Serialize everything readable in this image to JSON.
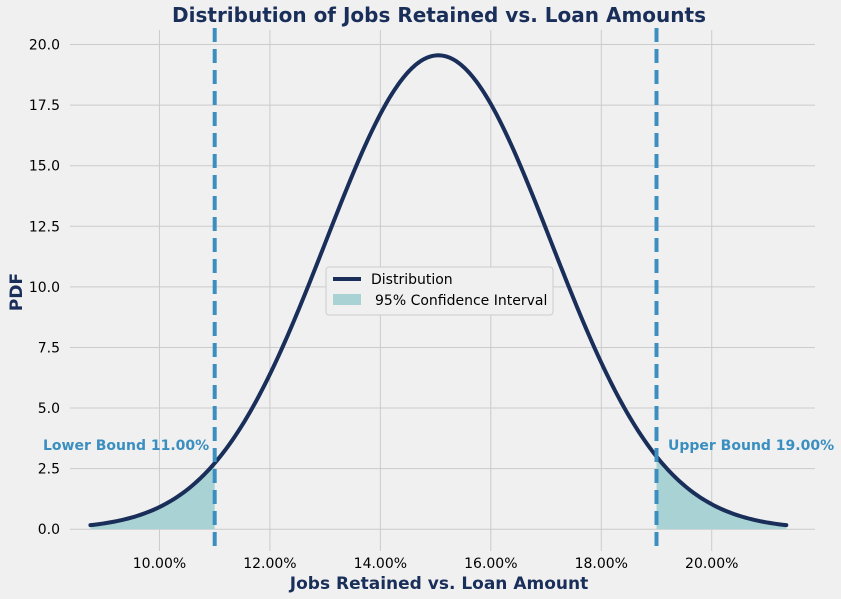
{
  "chart_data": {
    "type": "line",
    "title": "Distribution of Jobs Retained vs. Loan Amounts",
    "xlabel": "Jobs Retained vs. Loan Amount",
    "ylabel": "PDF",
    "x_ticks": [
      0.1,
      0.12,
      0.14,
      0.16,
      0.18,
      0.2
    ],
    "x_tick_labels": [
      "10.00%",
      "12.00%",
      "14.00%",
      "16.00%",
      "18.00%",
      "20.00%"
    ],
    "y_ticks": [
      0,
      2.5,
      5,
      7.5,
      10,
      12.5,
      15,
      17.5,
      20
    ],
    "y_tick_labels": [
      "0.0",
      "2.5",
      "5.0",
      "7.5",
      "10.0",
      "12.5",
      "15.0",
      "17.5",
      "20.0"
    ],
    "xlim": [
      0.0838,
      0.2187
    ],
    "ylim": [
      -0.9,
      20.6
    ],
    "grid": true,
    "distribution": {
      "name": "Distribution",
      "mean": 0.1505,
      "std": 0.0204,
      "x_range": [
        0.0875,
        0.2135
      ]
    },
    "confidence_interval": {
      "name": "95% Confidence Interval",
      "lower": 0.11,
      "upper": 0.19
    },
    "lower_bound_label": "Lower Bound 11.00%",
    "upper_bound_label": "Upper Bound 19.00%",
    "legend_position": "center",
    "colors": {
      "line": "#1a2e5a",
      "bounds": "#3a8fc0",
      "fill": "#a8d2d3",
      "grid": "#cbcbcb",
      "background": "#f0f0f0"
    }
  }
}
